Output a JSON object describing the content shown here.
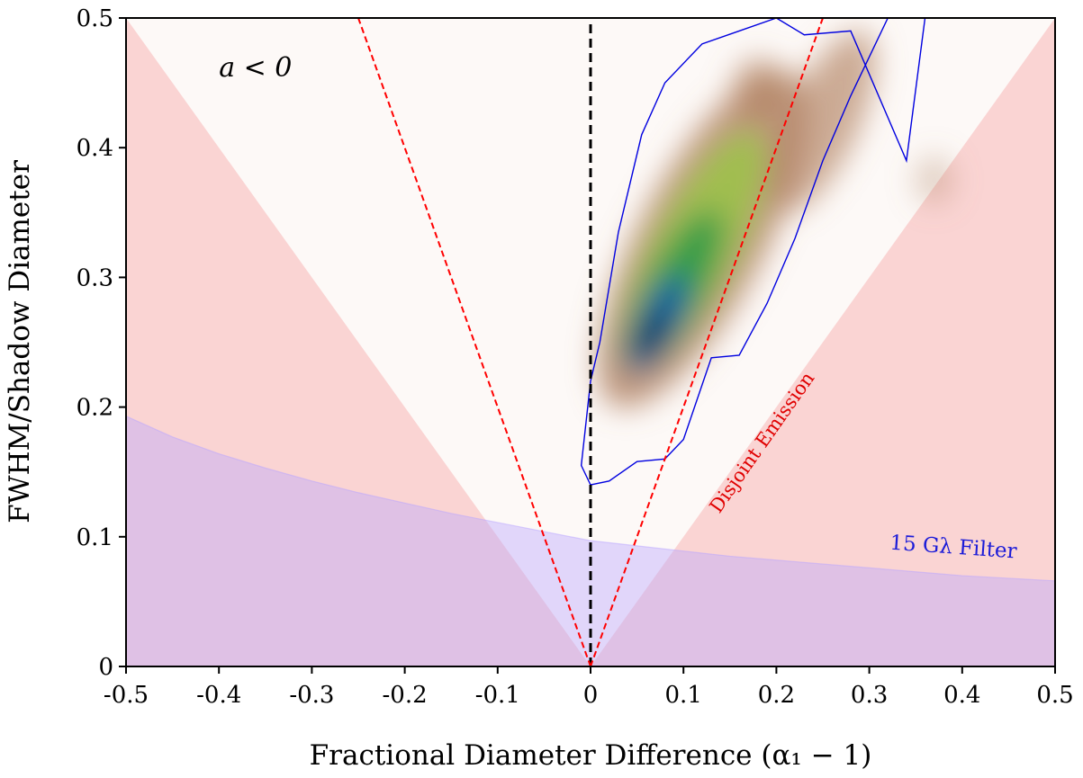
{
  "chart_data": {
    "type": "area",
    "xlabel": "Fractional Diameter Difference (α₁ − 1)",
    "ylabel": "FWHM/Shadow Diameter",
    "xlim": [
      -0.5,
      0.5
    ],
    "ylim": [
      0,
      0.5
    ],
    "xticks": [
      "-0.5",
      "-0.4",
      "-0.3",
      "-0.2",
      "-0.1",
      "0",
      "0.1",
      "0.2",
      "0.3",
      "0.4",
      "0.5"
    ],
    "yticks": [
      "0",
      "0.1",
      "0.2",
      "0.3",
      "0.4",
      "0.5"
    ],
    "xtick_values": [
      -0.5,
      -0.4,
      -0.3,
      -0.2,
      -0.1,
      0,
      0.1,
      0.2,
      0.3,
      0.4,
      0.5
    ],
    "ytick_values": [
      0,
      0.1,
      0.2,
      0.3,
      0.4,
      0.5
    ],
    "regions": {
      "disjoint_emission": {
        "label": "Disjoint Emission",
        "boundary_slope_y_per_x": 1.0,
        "color": "#f7b6b6"
      },
      "filter_15_glambda": {
        "label": "15 Gλ Filter",
        "color": "#b9a6ff",
        "boundary_x": [
          -0.5,
          -0.45,
          -0.4,
          -0.35,
          -0.3,
          -0.25,
          -0.2,
          -0.15,
          -0.1,
          -0.05,
          0,
          0.05,
          0.1,
          0.15,
          0.2,
          0.25,
          0.3,
          0.35,
          0.4,
          0.45,
          0.5
        ],
        "boundary_y": [
          0.193,
          0.177,
          0.164,
          0.153,
          0.143,
          0.134,
          0.126,
          0.118,
          0.111,
          0.104,
          0.097,
          0.093,
          0.089,
          0.085,
          0.082,
          0.079,
          0.076,
          0.073,
          0.07,
          0.068,
          0.066
        ]
      }
    },
    "reference_lines": [
      {
        "name": "zero-line",
        "x1": 0,
        "y1": 0,
        "x2": 0,
        "y2": 0.5,
        "color": "#000000",
        "style": "dashed"
      },
      {
        "name": "slope-left",
        "x1": 0,
        "y1": 0,
        "x2": -0.25,
        "y2": 0.5,
        "color": "#ff0000",
        "style": "dashed"
      },
      {
        "name": "slope-right",
        "x1": 0,
        "y1": 0,
        "x2": 0.25,
        "y2": 0.5,
        "color": "#ff0000",
        "style": "dashed"
      }
    ],
    "density": {
      "peak": [
        0.065,
        0.255
      ],
      "colormap": [
        "#b08060",
        "#9cc24a",
        "#2e9a4a",
        "#1b5fa8",
        "#001c58"
      ],
      "contour_color": "#0000e0",
      "contour_x": [
        -0.01,
        0.0,
        0.02,
        0.05,
        0.08,
        0.1,
        0.13,
        0.16,
        0.19,
        0.22,
        0.25,
        0.28,
        0.32,
        0.35,
        0.36,
        0.34,
        0.28,
        0.23,
        0.2,
        0.16,
        0.12,
        0.08,
        0.055,
        0.03,
        0.01,
        0.0,
        -0.01
      ],
      "contour_y": [
        0.155,
        0.14,
        0.143,
        0.158,
        0.16,
        0.175,
        0.238,
        0.24,
        0.28,
        0.33,
        0.39,
        0.44,
        0.5,
        0.5,
        0.5,
        0.39,
        0.49,
        0.487,
        0.5,
        0.49,
        0.48,
        0.45,
        0.41,
        0.335,
        0.25,
        0.22,
        0.155
      ]
    },
    "annotations": [
      {
        "id": "a-lt-0",
        "text": "a < 0",
        "x": -0.4,
        "y": 0.455
      },
      {
        "id": "disjoint",
        "text": "Disjoint Emission",
        "x": 0.19,
        "y": 0.17,
        "rotation_deg": -55
      },
      {
        "id": "filter",
        "text": "15 Gλ Filter",
        "x": 0.39,
        "y": 0.087,
        "rotation_deg": 4
      }
    ]
  }
}
